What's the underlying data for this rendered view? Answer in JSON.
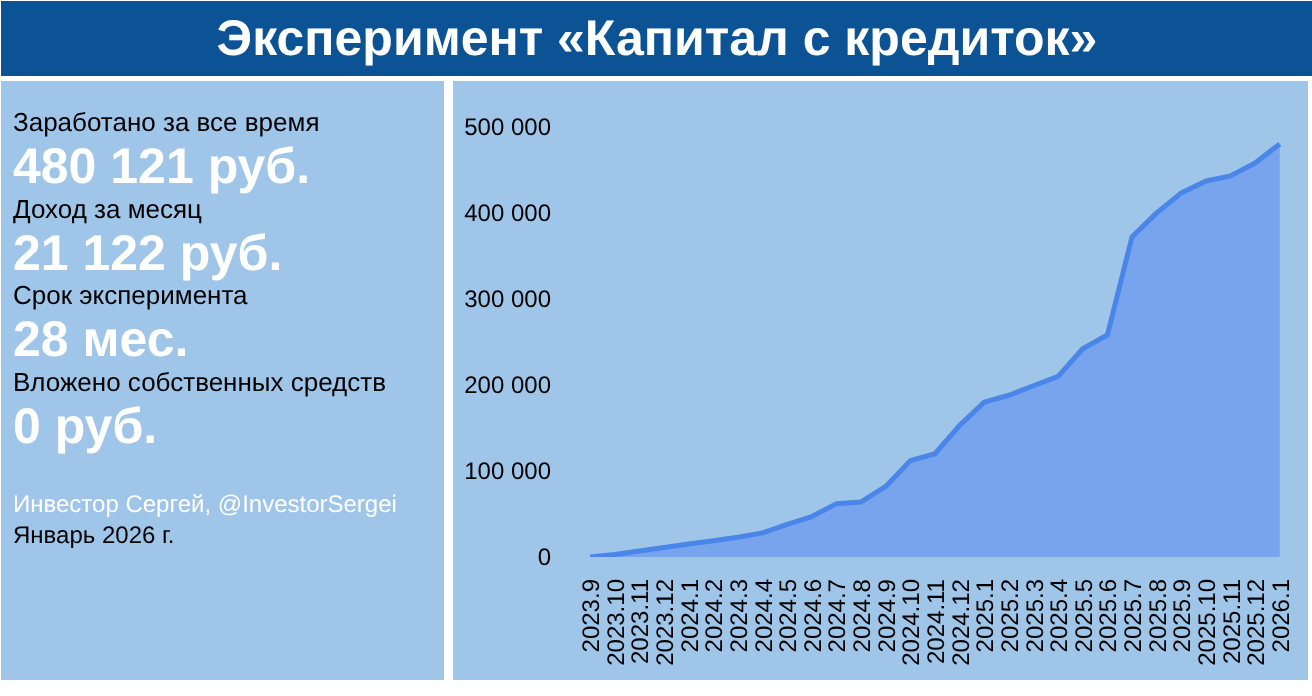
{
  "chart_data": [
    {
      "type": "other",
      "title": "Эксперимент «Капитал с кредиток»",
      "annotations": [
        "Заработано за все время",
        "480 121 руб.",
        "Доход за месяц",
        "21 122 руб.",
        "Срок эксперимента",
        "28 мес.",
        "Вложено собственных средств",
        "0 руб.",
        "Инвестор Сергей, @InvestorSergei",
        "Январь 2026 г."
      ]
    },
    {
      "type": "area",
      "categories": [
        "2023.9",
        "2023.10",
        "2023.11",
        "2023.12",
        "2024.1",
        "2024.2",
        "2024.3",
        "2024.4",
        "2024.5",
        "2024.6",
        "2024.7",
        "2024.8",
        "2024.9",
        "2024.10",
        "2024.11",
        "2024.12",
        "2025.1",
        "2025.2",
        "2025.3",
        "2025.4",
        "2025.5",
        "2025.6",
        "2025.7",
        "2025.8",
        "2025.9",
        "2025.10",
        "2025.11",
        "2025.12",
        "2026.1"
      ],
      "series": [
        {
          "color": "#4a86e8",
          "values": [
            0,
            3000,
            7000,
            11000,
            15000,
            19000,
            23000,
            28000,
            38000,
            47000,
            62000,
            64000,
            82000,
            112000,
            120000,
            153000,
            180000,
            188000,
            199000,
            210000,
            242000,
            258000,
            372000,
            400000,
            423000,
            437000,
            443000,
            458000,
            480000
          ]
        }
      ],
      "ylim": [
        0,
        530000
      ],
      "yticks": [
        {
          "value": 0,
          "label": "0"
        },
        {
          "value": 100000,
          "label": "100 000"
        },
        {
          "value": 200000,
          "label": "200 000"
        },
        {
          "value": 300000,
          "label": "300 000"
        },
        {
          "value": 400000,
          "label": "400 000"
        },
        {
          "value": 500000,
          "label": "500 000"
        }
      ],
      "grid": false
    }
  ]
}
